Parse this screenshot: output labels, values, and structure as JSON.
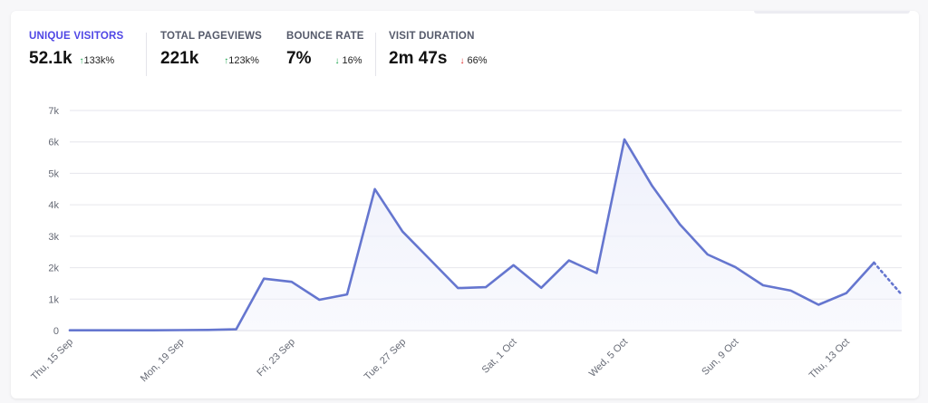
{
  "stats": [
    {
      "label": "UNIQUE VISITORS",
      "value": "52.1k",
      "change": "133k%",
      "direction": "up",
      "active": true
    },
    {
      "label": "TOTAL PAGEVIEWS",
      "value": "221k",
      "change": "123k%",
      "direction": "up",
      "active": false
    },
    {
      "label": "BOUNCE RATE",
      "value": "7%",
      "change": "16%",
      "direction": "down-good",
      "active": false
    },
    {
      "label": "VISIT DURATION",
      "value": "2m 47s",
      "change": "66%",
      "direction": "down-bad",
      "active": false
    }
  ],
  "colors": {
    "accent": "#4f46e5",
    "line": "#6576cf",
    "fill": "#eef0fb",
    "grid": "#e6e6ec",
    "up": "#16a34a",
    "down": "#dc2626"
  },
  "chart_data": {
    "type": "area",
    "title": "",
    "xlabel": "",
    "ylabel": "",
    "ylim": [
      0,
      7000
    ],
    "y_ticks": [
      0,
      1000,
      2000,
      3000,
      4000,
      5000,
      6000,
      7000
    ],
    "y_tick_labels": [
      "0",
      "1k",
      "2k",
      "3k",
      "4k",
      "5k",
      "6k",
      "7k"
    ],
    "x_tick_labels": [
      "Thu, 15 Sep",
      "Mon, 19 Sep",
      "Fri, 23 Sep",
      "Tue, 27 Sep",
      "Sat, 1 Oct",
      "Wed, 5 Oct",
      "Sun, 9 Oct",
      "Thu, 13 Oct"
    ],
    "x_tick_every": 4,
    "grid": true,
    "legend": "none",
    "dates": [
      "15 Sep",
      "16 Sep",
      "17 Sep",
      "18 Sep",
      "19 Sep",
      "20 Sep",
      "21 Sep",
      "22 Sep",
      "23 Sep",
      "24 Sep",
      "25 Sep",
      "26 Sep",
      "27 Sep",
      "28 Sep",
      "29 Sep",
      "30 Sep",
      "1 Oct",
      "2 Oct",
      "3 Oct",
      "4 Oct",
      "5 Oct",
      "6 Oct",
      "7 Oct",
      "8 Oct",
      "9 Oct",
      "10 Oct",
      "11 Oct",
      "12 Oct",
      "13 Oct",
      "14 Oct",
      "15 Oct"
    ],
    "values": [
      10,
      10,
      10,
      10,
      15,
      20,
      40,
      1650,
      1550,
      980,
      1150,
      4500,
      3150,
      2250,
      1350,
      1380,
      2080,
      1360,
      2230,
      1830,
      6080,
      4600,
      3380,
      2420,
      2020,
      1440,
      1270,
      820,
      1190,
      2160,
      1140
    ],
    "dotted_last_segment": true
  }
}
